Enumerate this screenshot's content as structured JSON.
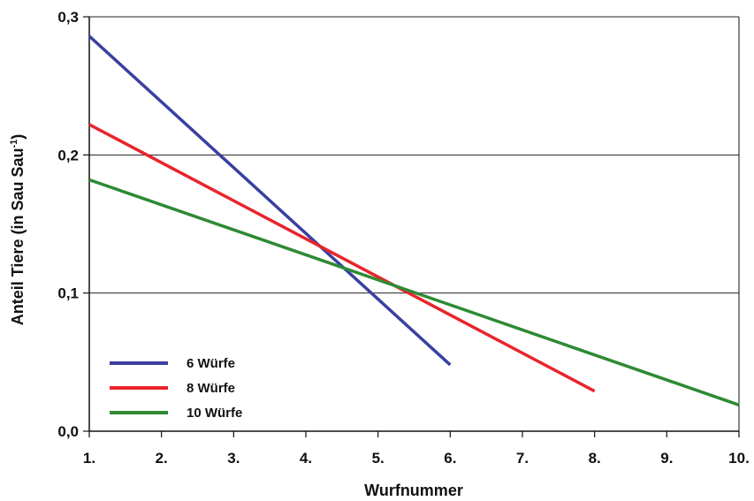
{
  "chart_data": {
    "type": "line",
    "xlabel": "Wurfnummer",
    "ylabel": "Anteil Tiere (in Sau Sau",
    "ylabel_superscript": "-1",
    "ylabel_suffix": ")",
    "x_ticks": [
      1,
      2,
      3,
      4,
      5,
      6,
      7,
      8,
      9,
      10
    ],
    "x_tick_labels": [
      "1.",
      "2.",
      "3.",
      "4.",
      "5.",
      "6.",
      "7.",
      "8.",
      "9.",
      "10."
    ],
    "y_ticks": [
      0,
      0.1,
      0.2,
      0.3
    ],
    "y_tick_labels": [
      "0,0",
      "0,1",
      "0,2",
      "0,3"
    ],
    "xlim": [
      1,
      10
    ],
    "ylim": [
      0,
      0.3
    ],
    "grid": "horizontal",
    "legend_position": "bottom-left",
    "series": [
      {
        "name": "6 Würfe",
        "color": "#3a3fa0",
        "x": [
          1,
          6
        ],
        "y": [
          0.286,
          0.048
        ]
      },
      {
        "name": "8 Würfe",
        "color": "#e8242c",
        "x": [
          1,
          8
        ],
        "y": [
          0.222,
          0.029
        ]
      },
      {
        "name": "10 Würfe",
        "color": "#2e8a33",
        "x": [
          1,
          10
        ],
        "y": [
          0.182,
          0.019
        ]
      }
    ]
  }
}
